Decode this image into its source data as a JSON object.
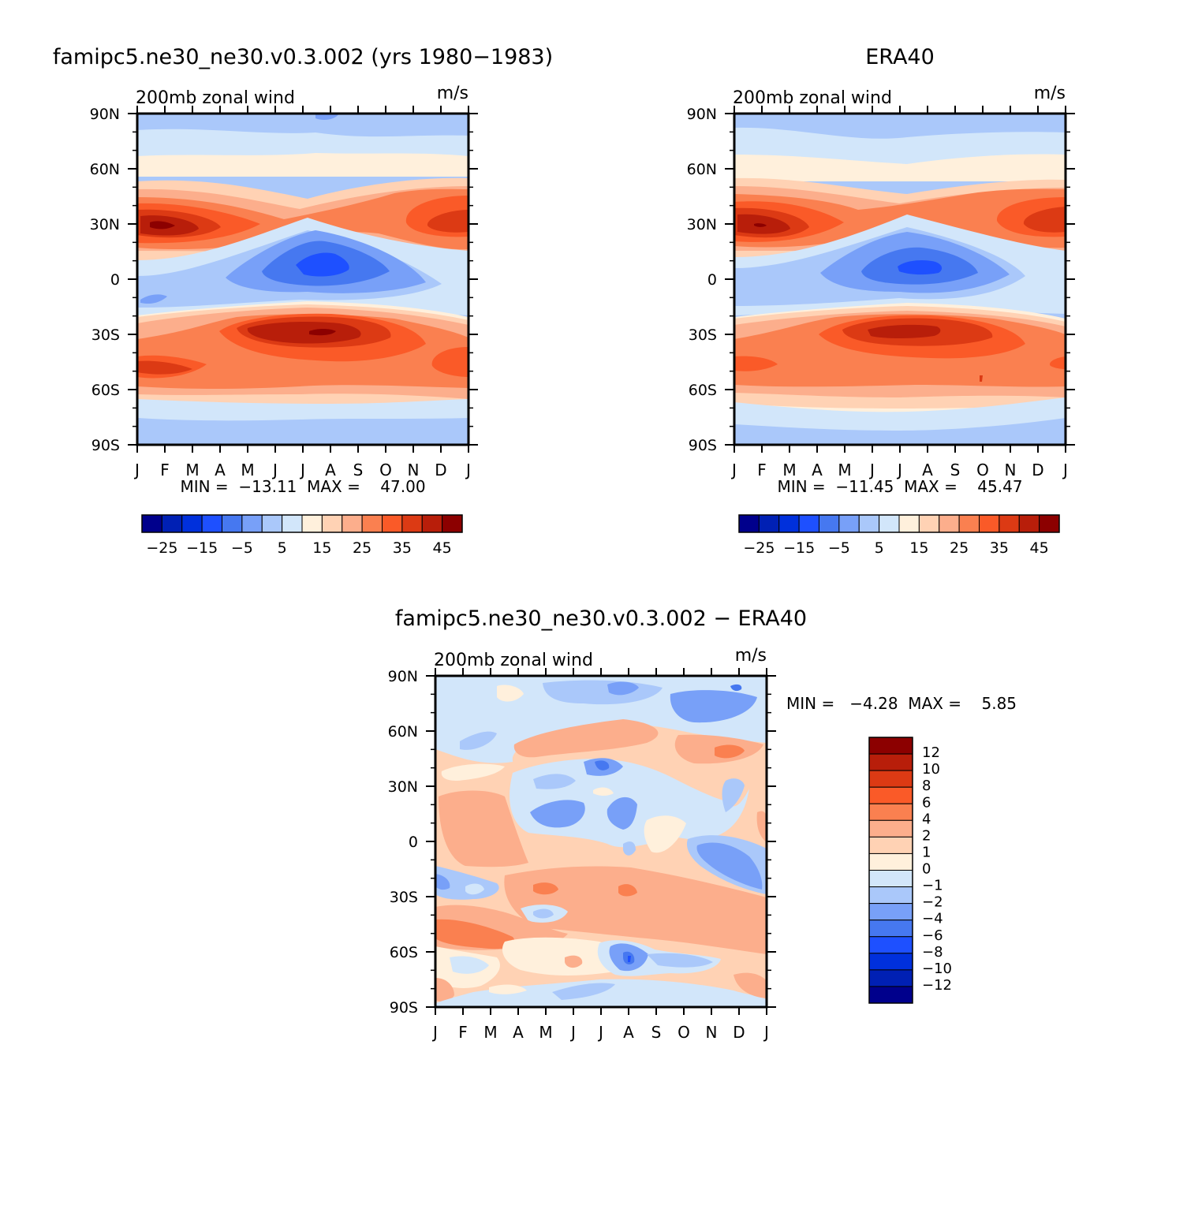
{
  "colors": {
    "model_palette": [
      "#00008c",
      "#0020b4",
      "#0030dc",
      "#1e50ff",
      "#4678f0",
      "#78a0f8",
      "#aac8fa",
      "#d2e6fa",
      "#fff0dc",
      "#ffd2b4",
      "#fcae8c",
      "#fa8050",
      "#fa5a28",
      "#dc3a14",
      "#b81e0a",
      "#8c0000"
    ],
    "diff_palette": [
      "#00008c",
      "#0020b4",
      "#0030dc",
      "#1e50ff",
      "#4678f0",
      "#78a0f8",
      "#aac8fa",
      "#d2e6fa",
      "#fff0dc",
      "#ffd2b4",
      "#fcae8c",
      "#fa8050",
      "#fa5a28",
      "#dc3a14",
      "#b81e0a",
      "#8c0000"
    ]
  },
  "panels": [
    {
      "title": "famipc5.ne30_ne30.v0.3.002 (yrs 1980−1983)",
      "subtitle_left": "200mb zonal wind",
      "subtitle_right": "m/s",
      "min_max": "MIN =  −13.11  MAX =    47.00"
    },
    {
      "title": "ERA40",
      "subtitle_left": "200mb zonal wind",
      "subtitle_right": "m/s",
      "min_max": "MIN =  −11.45  MAX =    45.47"
    },
    {
      "title": "famipc5.ne30_ne30.v0.3.002 − ERA40",
      "subtitle_left": "200mb zonal wind",
      "subtitle_right": "m/s",
      "min_max": "MIN =   −4.28  MAX =    5.85"
    }
  ],
  "chart_data": [
    {
      "type": "heatmap",
      "title": "famipc5.ne30_ne30.v0.3.002 (yrs 1980−1983)",
      "variable": "200mb zonal wind",
      "units": "m/s",
      "x_ticks": [
        "J",
        "F",
        "M",
        "A",
        "M",
        "J",
        "J",
        "A",
        "S",
        "O",
        "N",
        "D",
        "J"
      ],
      "y_ticks": [
        "90N",
        "60N",
        "30N",
        "0",
        "30S",
        "60S",
        "90S"
      ],
      "y_range": [
        -90,
        90
      ],
      "min": -13.11,
      "max": 47.0,
      "colorbar_levels": [
        -30,
        -25,
        -20,
        -15,
        -10,
        -5,
        0,
        5,
        10,
        15,
        20,
        25,
        30,
        35,
        40,
        45
      ],
      "colorbar_labels": [
        "−25",
        "−15",
        "−5",
        "5",
        "15",
        "25",
        "35",
        "45"
      ],
      "max_location": "NH subtropical jet ~30N in January-February"
    },
    {
      "type": "heatmap",
      "title": "ERA40",
      "variable": "200mb zonal wind",
      "units": "m/s",
      "x_ticks": [
        "J",
        "F",
        "M",
        "A",
        "M",
        "J",
        "J",
        "A",
        "S",
        "O",
        "N",
        "D",
        "J"
      ],
      "y_ticks": [
        "90N",
        "60N",
        "30N",
        "0",
        "30S",
        "60S",
        "90S"
      ],
      "y_range": [
        -90,
        90
      ],
      "min": -11.45,
      "max": 45.47,
      "colorbar_levels": [
        -30,
        -25,
        -20,
        -15,
        -10,
        -5,
        0,
        5,
        10,
        15,
        20,
        25,
        30,
        35,
        40,
        45
      ],
      "colorbar_labels": [
        "−25",
        "−15",
        "−5",
        "5",
        "15",
        "25",
        "35",
        "45"
      ]
    },
    {
      "type": "heatmap",
      "title": "famipc5.ne30_ne30.v0.3.002 − ERA40",
      "variable": "200mb zonal wind",
      "units": "m/s",
      "x_ticks": [
        "J",
        "F",
        "M",
        "A",
        "M",
        "J",
        "J",
        "A",
        "S",
        "O",
        "N",
        "D",
        "J"
      ],
      "y_ticks": [
        "90N",
        "60N",
        "30N",
        "0",
        "30S",
        "60S",
        "90S"
      ],
      "y_range": [
        -90,
        90
      ],
      "min": -4.28,
      "max": 5.85,
      "colorbar_levels": [
        -12,
        -10,
        -8,
        -6,
        -4,
        -2,
        -1,
        0,
        1,
        2,
        4,
        6,
        8,
        10,
        12
      ],
      "colorbar_labels": [
        "12",
        "10",
        "8",
        "6",
        "4",
        "2",
        "1",
        "0",
        "−1",
        "−2",
        "−4",
        "−6",
        "−8",
        "−10",
        "−12"
      ]
    }
  ]
}
